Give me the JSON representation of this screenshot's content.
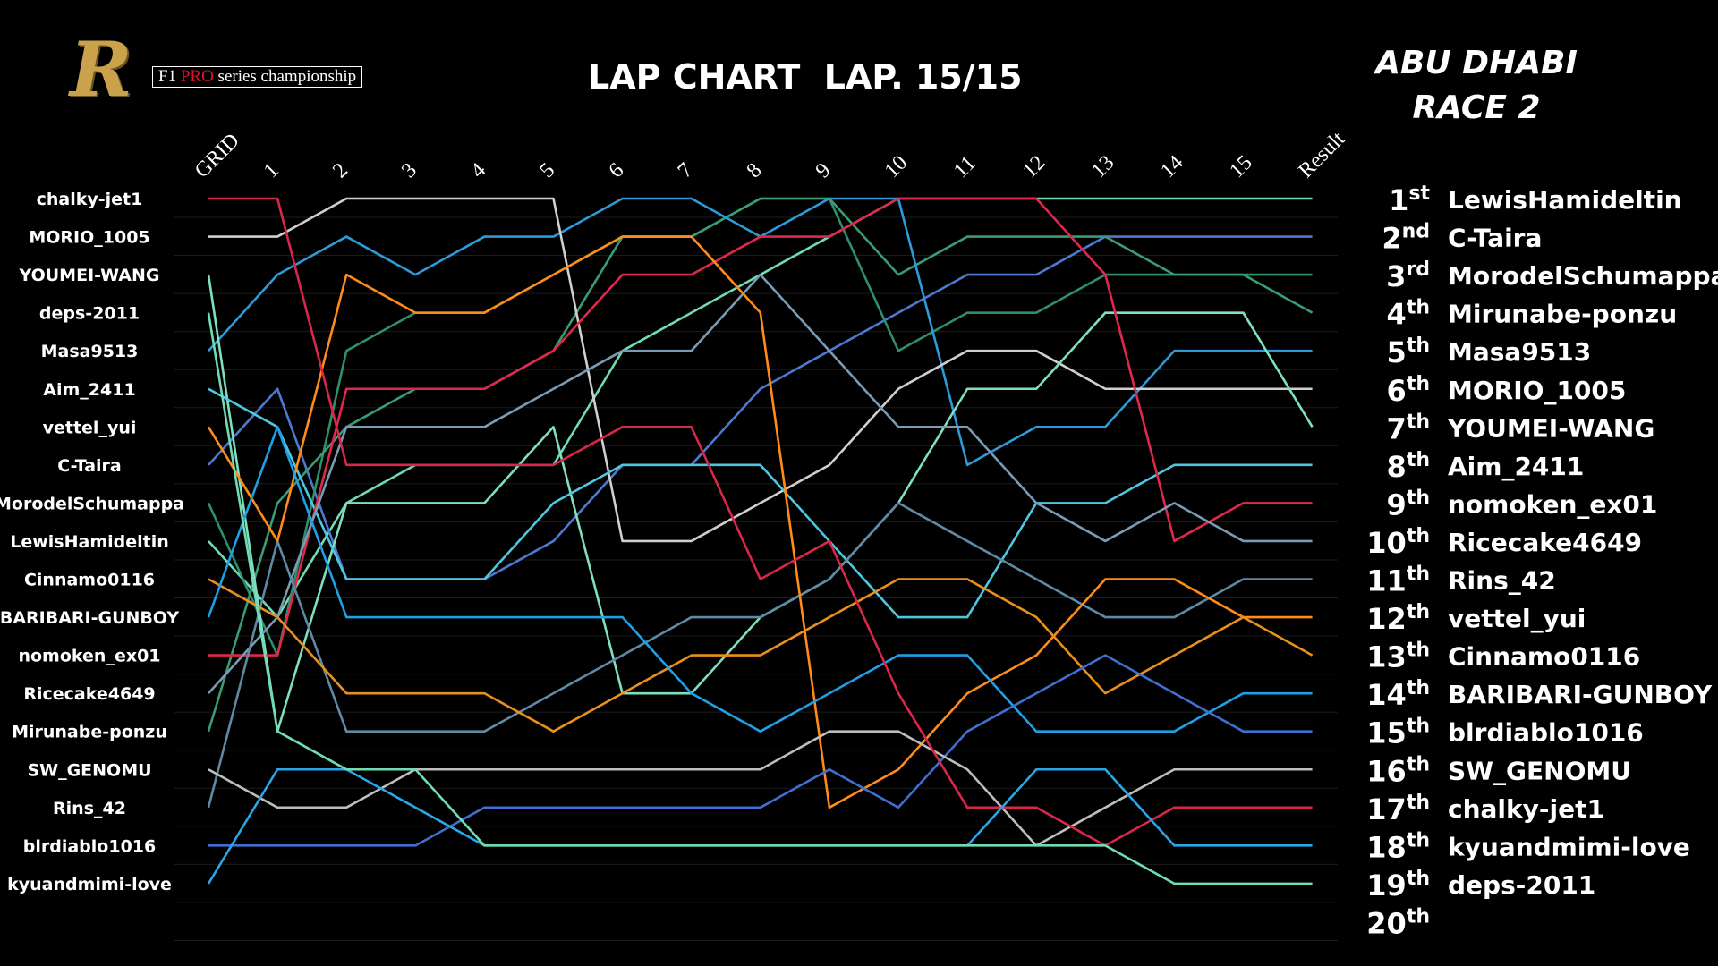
{
  "header": {
    "logo_letter": "R",
    "logo_prefix": "F1 ",
    "logo_pro": "PRO",
    "logo_suffix": " series championship",
    "title": "LAP CHART  LAP. 15/15",
    "event_line1": "ABU DHABI",
    "event_line2": "RACE 2"
  },
  "chart_data": {
    "type": "line",
    "title": "LAP CHART  LAP. 15/15",
    "x": [
      "GRID",
      "1",
      "2",
      "3",
      "4",
      "5",
      "6",
      "7",
      "8",
      "9",
      "10",
      "11",
      "12",
      "13",
      "14",
      "15",
      "Result"
    ],
    "ylim": [
      1,
      20
    ],
    "y_inverted": true,
    "grid": false,
    "grid_labels": [
      "chalky-jet1",
      "MORIO_1005",
      "YOUMEI-WANG",
      "deps-2011",
      "Masa9513",
      "Aim_2411",
      "vettel_yui",
      "C-Taira",
      "MorodelSchumappa",
      "LewisHamideltin",
      "Cinnamo0116",
      "BARIBARI-GUNBOY",
      "nomoken_ex01",
      "Ricecake4649",
      "Mirunabe-ponzu",
      "SW_GENOMU",
      "Rins_42",
      "blrdiablo1016",
      "kyuandmimi-love"
    ],
    "result_positions": [
      {
        "num": "1",
        "suffix": "st",
        "driver": "LewisHamideltin"
      },
      {
        "num": "2",
        "suffix": "nd",
        "driver": "C-Taira"
      },
      {
        "num": "3",
        "suffix": "rd",
        "driver": "MorodelSchumappa"
      },
      {
        "num": "4",
        "suffix": "th",
        "driver": "Mirunabe-ponzu"
      },
      {
        "num": "5",
        "suffix": "th",
        "driver": "Masa9513"
      },
      {
        "num": "6",
        "suffix": "th",
        "driver": "MORIO_1005"
      },
      {
        "num": "7",
        "suffix": "th",
        "driver": "YOUMEI-WANG"
      },
      {
        "num": "8",
        "suffix": "th",
        "driver": "Aim_2411"
      },
      {
        "num": "9",
        "suffix": "th",
        "driver": "nomoken_ex01"
      },
      {
        "num": "10",
        "suffix": "th",
        "driver": "Ricecake4649"
      },
      {
        "num": "11",
        "suffix": "th",
        "driver": "Rins_42"
      },
      {
        "num": "12",
        "suffix": "th",
        "driver": "vettel_yui"
      },
      {
        "num": "13",
        "suffix": "th",
        "driver": "Cinnamo0116"
      },
      {
        "num": "14",
        "suffix": "th",
        "driver": "BARIBARI-GUNBOY"
      },
      {
        "num": "15",
        "suffix": "th",
        "driver": "blrdiablo1016"
      },
      {
        "num": "16",
        "suffix": "th",
        "driver": "SW_GENOMU"
      },
      {
        "num": "17",
        "suffix": "th",
        "driver": "chalky-jet1"
      },
      {
        "num": "18",
        "suffix": "th",
        "driver": "kyuandmimi-love"
      },
      {
        "num": "19",
        "suffix": "th",
        "driver": "deps-2011"
      },
      {
        "num": "20",
        "suffix": "th",
        "driver": ""
      }
    ],
    "series": [
      {
        "name": "LewisHamideltin",
        "color": "#6fdcb4",
        "values": [
          10,
          12,
          9,
          8,
          8,
          8,
          5,
          4,
          3,
          2,
          1,
          1,
          1,
          1,
          1,
          1,
          1
        ]
      },
      {
        "name": "C-Taira",
        "color": "#4e79d0",
        "values": [
          8,
          6,
          11,
          11,
          11,
          10,
          8,
          8,
          6,
          5,
          4,
          3,
          3,
          2,
          2,
          2,
          2
        ]
      },
      {
        "name": "MorodelSchumappa",
        "color": "#2f8f6a",
        "values": [
          9,
          13,
          5,
          4,
          4,
          3,
          2,
          2,
          1,
          1,
          5,
          4,
          4,
          3,
          3,
          3,
          3
        ]
      },
      {
        "name": "Mirunabe-ponzu",
        "color": "#3a9c72",
        "values": [
          15,
          9,
          7,
          6,
          6,
          5,
          2,
          2,
          1,
          1,
          3,
          2,
          2,
          2,
          3,
          3,
          4
        ]
      },
      {
        "name": "Masa9513",
        "color": "#2e9ad8",
        "values": [
          5,
          3,
          2,
          3,
          2,
          2,
          1,
          1,
          2,
          1,
          1,
          8,
          7,
          7,
          5,
          5,
          5
        ]
      },
      {
        "name": "MORIO_1005",
        "color": "#cfcfcf",
        "values": [
          2,
          2,
          1,
          1,
          1,
          1,
          10,
          10,
          9,
          8,
          6,
          5,
          5,
          6,
          6,
          6,
          6
        ]
      },
      {
        "name": "YOUMEI-WANG",
        "color": "#7fe0c0",
        "values": [
          3,
          15,
          9,
          9,
          9,
          7,
          14,
          14,
          12,
          11,
          9,
          6,
          6,
          4,
          4,
          4,
          7
        ]
      },
      {
        "name": "Aim_2411",
        "color": "#4fc6e0",
        "values": [
          6,
          7,
          11,
          11,
          11,
          9,
          8,
          8,
          8,
          10,
          12,
          12,
          9,
          9,
          8,
          8,
          8
        ]
      },
      {
        "name": "nomoken_ex01",
        "color": "#e0284c",
        "values": [
          13,
          13,
          6,
          6,
          6,
          5,
          3,
          3,
          2,
          2,
          1,
          1,
          1,
          3,
          10,
          9,
          9
        ]
      },
      {
        "name": "Ricecake4649",
        "color": "#7a9bb4",
        "values": [
          14,
          12,
          7,
          7,
          7,
          6,
          5,
          5,
          3,
          5,
          7,
          7,
          9,
          10,
          9,
          10,
          10
        ]
      },
      {
        "name": "Rins_42",
        "color": "#5f8aa6",
        "values": [
          17,
          10,
          15,
          15,
          15,
          14,
          13,
          12,
          12,
          11,
          9,
          10,
          11,
          12,
          12,
          11,
          11
        ]
      },
      {
        "name": "vettel_yui",
        "color": "#ff8c1a",
        "values": [
          7,
          10,
          3,
          4,
          4,
          3,
          2,
          2,
          4,
          17,
          16,
          14,
          13,
          11,
          11,
          12,
          12
        ]
      },
      {
        "name": "Cinnamo0116",
        "color": "#e8901e",
        "values": [
          11,
          12,
          14,
          14,
          14,
          15,
          14,
          13,
          13,
          12,
          11,
          11,
          12,
          14,
          13,
          12,
          13
        ]
      },
      {
        "name": "BARIBARI-GUNBOY",
        "color": "#1fa0e6",
        "values": [
          12,
          7,
          12,
          12,
          12,
          12,
          12,
          14,
          15,
          14,
          13,
          13,
          15,
          15,
          15,
          14,
          14
        ]
      },
      {
        "name": "blrdiablo1016",
        "color": "#3f6fd0",
        "values": [
          18,
          18,
          18,
          18,
          17,
          17,
          17,
          17,
          17,
          16,
          17,
          15,
          14,
          13,
          14,
          15,
          15
        ]
      },
      {
        "name": "SW_GENOMU",
        "color": "#bdbdbd",
        "values": [
          16,
          17,
          17,
          16,
          16,
          16,
          16,
          16,
          16,
          15,
          15,
          16,
          18,
          17,
          16,
          16,
          16
        ]
      },
      {
        "name": "chalky-jet1",
        "color": "#d8284a",
        "values": [
          1,
          1,
          8,
          8,
          8,
          8,
          7,
          7,
          11,
          10,
          14,
          17,
          17,
          18,
          17,
          17,
          17
        ]
      },
      {
        "name": "kyuandmimi-love",
        "color": "#2aa6e8",
        "values": [
          19,
          16,
          16,
          17,
          18,
          18,
          18,
          18,
          18,
          18,
          18,
          18,
          16,
          16,
          18,
          18,
          18
        ]
      },
      {
        "name": "deps-2011",
        "color": "#6fdcb4",
        "values": [
          4,
          15,
          16,
          16,
          18,
          18,
          18,
          18,
          18,
          18,
          18,
          18,
          18,
          18,
          19,
          19,
          19
        ]
      }
    ]
  }
}
